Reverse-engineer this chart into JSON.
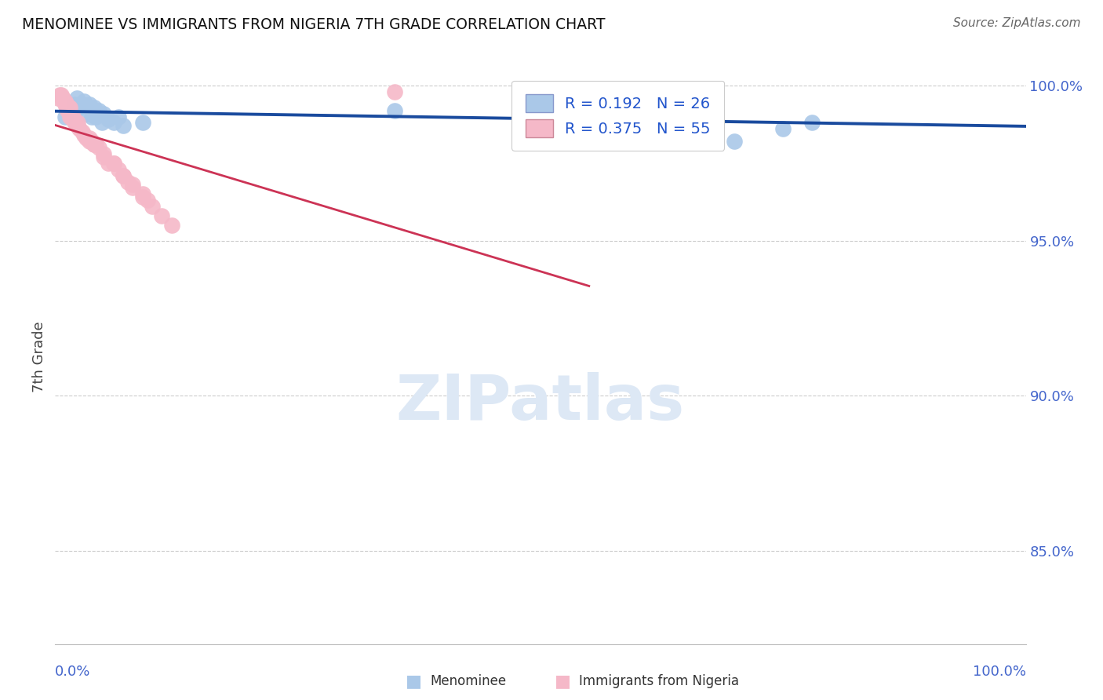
{
  "title": "MENOMINEE VS IMMIGRANTS FROM NIGERIA 7TH GRADE CORRELATION CHART",
  "source": "Source: ZipAtlas.com",
  "ylabel": "7th Grade",
  "legend_blue_r": "0.192",
  "legend_blue_n": "26",
  "legend_pink_r": "0.375",
  "legend_pink_n": "55",
  "legend_label_blue": "Menominee",
  "legend_label_pink": "Immigrants from Nigeria",
  "blue_scatter_color": "#aac8e8",
  "pink_scatter_color": "#f5b8c8",
  "blue_line_color": "#1a4b9e",
  "pink_line_color": "#cc3355",
  "legend_text_color": "#2255cc",
  "axis_label_color": "#4466cc",
  "watermark_color": "#dde8f5",
  "xlim": [
    0.0,
    1.0
  ],
  "ylim": [
    0.82,
    1.005
  ],
  "y_ticks": [
    0.85,
    0.9,
    0.95,
    1.0
  ],
  "y_tick_labels": [
    "85.0%",
    "90.0%",
    "95.0%",
    "100.0%"
  ],
  "blue_x": [
    0.01,
    0.02,
    0.022,
    0.025,
    0.028,
    0.03,
    0.032,
    0.035,
    0.038,
    0.04,
    0.042,
    0.045,
    0.048,
    0.05,
    0.055,
    0.06,
    0.065,
    0.07,
    0.09,
    0.35,
    0.52,
    0.55,
    0.65,
    0.7,
    0.75,
    0.78
  ],
  "blue_y": [
    0.99,
    0.994,
    0.996,
    0.993,
    0.994,
    0.995,
    0.991,
    0.994,
    0.99,
    0.993,
    0.99,
    0.992,
    0.988,
    0.991,
    0.989,
    0.988,
    0.99,
    0.987,
    0.988,
    0.992,
    0.997,
    0.997,
    0.985,
    0.982,
    0.986,
    0.988
  ],
  "pink_x": [
    0.003,
    0.005,
    0.006,
    0.007,
    0.008,
    0.009,
    0.01,
    0.01,
    0.011,
    0.012,
    0.012,
    0.013,
    0.013,
    0.014,
    0.015,
    0.015,
    0.015,
    0.016,
    0.017,
    0.018,
    0.018,
    0.019,
    0.02,
    0.021,
    0.022,
    0.023,
    0.025,
    0.028,
    0.03,
    0.032,
    0.035,
    0.038,
    0.04,
    0.042,
    0.045,
    0.05,
    0.055,
    0.06,
    0.065,
    0.07,
    0.075,
    0.08,
    0.09,
    0.1,
    0.11,
    0.12,
    0.035,
    0.04,
    0.05,
    0.06,
    0.07,
    0.08,
    0.09,
    0.095,
    0.35
  ],
  "pink_y": [
    0.996,
    0.997,
    0.997,
    0.996,
    0.996,
    0.995,
    0.994,
    0.995,
    0.994,
    0.994,
    0.993,
    0.993,
    0.992,
    0.993,
    0.993,
    0.991,
    0.99,
    0.991,
    0.99,
    0.99,
    0.989,
    0.989,
    0.988,
    0.988,
    0.987,
    0.988,
    0.986,
    0.985,
    0.984,
    0.983,
    0.982,
    0.982,
    0.981,
    0.981,
    0.98,
    0.977,
    0.975,
    0.975,
    0.973,
    0.971,
    0.969,
    0.967,
    0.964,
    0.961,
    0.958,
    0.955,
    0.983,
    0.981,
    0.978,
    0.975,
    0.971,
    0.968,
    0.965,
    0.963,
    0.998
  ]
}
